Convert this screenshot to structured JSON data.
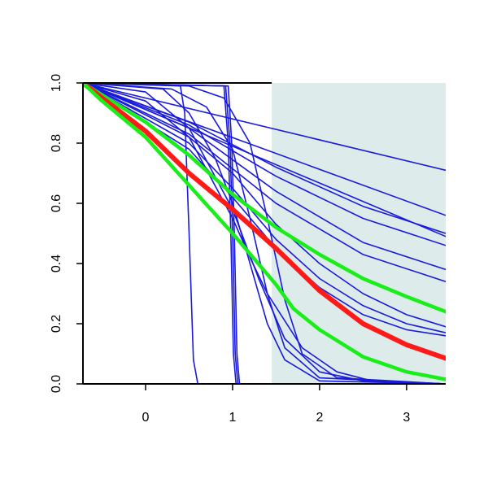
{
  "chart_data": {
    "type": "line",
    "title": "",
    "xlabel": "",
    "ylabel": "",
    "xlim": [
      -0.72,
      3.45
    ],
    "ylim": [
      0.0,
      1.0
    ],
    "x_ticks": [
      0,
      1,
      2,
      3
    ],
    "x_tick_labels": [
      "0",
      "1",
      "2",
      "3"
    ],
    "y_ticks": [
      0.0,
      0.2,
      0.4,
      0.6,
      0.8,
      1.0
    ],
    "y_tick_labels": [
      "0.0",
      "0.2",
      "0.4",
      "0.6",
      "0.8",
      "1.0"
    ],
    "grid": false,
    "legend": "none",
    "shaded_region": {
      "x": [
        1.45,
        3.45
      ],
      "y": [
        0.0,
        1.0
      ],
      "color": "#deebeb"
    },
    "colors": {
      "blue": "#1a1adb",
      "red": "#ff1a1a",
      "green": "#1aee1a"
    },
    "series": [
      {
        "role": "blue",
        "values": [
          [
            -0.72,
            1.0
          ],
          [
            0.4,
            0.99
          ],
          [
            0.45,
            0.9
          ],
          [
            0.5,
            0.5
          ],
          [
            0.55,
            0.08
          ],
          [
            0.6,
            0.0
          ],
          [
            3.45,
            0.0
          ]
        ]
      },
      {
        "role": "blue",
        "values": [
          [
            -0.72,
            1.0
          ],
          [
            0.9,
            0.99
          ],
          [
            0.95,
            0.8
          ],
          [
            0.98,
            0.5
          ],
          [
            1.01,
            0.1
          ],
          [
            1.04,
            0.0
          ],
          [
            3.45,
            0.0
          ]
        ]
      },
      {
        "role": "blue",
        "values": [
          [
            -0.72,
            1.0
          ],
          [
            0.92,
            0.99
          ],
          [
            0.97,
            0.8
          ],
          [
            1.0,
            0.5
          ],
          [
            1.03,
            0.1
          ],
          [
            1.06,
            0.0
          ],
          [
            3.45,
            0.0
          ]
        ]
      },
      {
        "role": "blue",
        "values": [
          [
            -0.72,
            1.0
          ],
          [
            0.95,
            0.99
          ],
          [
            0.99,
            0.8
          ],
          [
            1.02,
            0.5
          ],
          [
            1.05,
            0.1
          ],
          [
            1.08,
            0.0
          ],
          [
            3.45,
            0.0
          ]
        ]
      },
      {
        "role": "blue",
        "values": [
          [
            -0.72,
            1.0
          ],
          [
            0.2,
            0.98
          ],
          [
            0.5,
            0.9
          ],
          [
            0.8,
            0.75
          ],
          [
            1.0,
            0.6
          ],
          [
            1.2,
            0.4
          ],
          [
            1.4,
            0.2
          ],
          [
            1.6,
            0.08
          ],
          [
            2.0,
            0.01
          ],
          [
            3.45,
            0.0
          ]
        ]
      },
      {
        "role": "blue",
        "values": [
          [
            -0.72,
            1.0
          ],
          [
            0.3,
            0.98
          ],
          [
            0.7,
            0.92
          ],
          [
            1.0,
            0.78
          ],
          [
            1.2,
            0.55
          ],
          [
            1.4,
            0.3
          ],
          [
            1.6,
            0.12
          ],
          [
            2.0,
            0.02
          ],
          [
            3.45,
            0.0
          ]
        ]
      },
      {
        "role": "blue",
        "values": [
          [
            -0.72,
            1.0
          ],
          [
            0.5,
            0.99
          ],
          [
            0.9,
            0.95
          ],
          [
            1.2,
            0.8
          ],
          [
            1.4,
            0.55
          ],
          [
            1.6,
            0.28
          ],
          [
            1.8,
            0.1
          ],
          [
            2.2,
            0.02
          ],
          [
            3.45,
            0.0
          ]
        ]
      },
      {
        "role": "blue",
        "values": [
          [
            -0.72,
            1.0
          ],
          [
            0.0,
            0.97
          ],
          [
            0.5,
            0.85
          ],
          [
            1.0,
            0.58
          ],
          [
            1.3,
            0.35
          ],
          [
            1.6,
            0.15
          ],
          [
            2.0,
            0.04
          ],
          [
            2.5,
            0.01
          ],
          [
            3.45,
            0.0
          ]
        ]
      },
      {
        "role": "blue",
        "values": [
          [
            -0.72,
            1.0
          ],
          [
            0.0,
            0.94
          ],
          [
            0.5,
            0.82
          ],
          [
            1.0,
            0.55
          ],
          [
            1.2,
            0.42
          ],
          [
            1.4,
            0.3
          ],
          [
            1.8,
            0.12
          ],
          [
            2.2,
            0.04
          ],
          [
            2.6,
            0.01
          ],
          [
            3.45,
            0.0
          ]
        ]
      },
      {
        "role": "blue",
        "values": [
          [
            -0.72,
            1.0
          ],
          [
            3.45,
            0.71
          ]
        ]
      },
      {
        "role": "blue",
        "values": [
          [
            -0.72,
            1.0
          ],
          [
            3.45,
            0.56
          ]
        ]
      },
      {
        "role": "blue",
        "values": [
          [
            -0.72,
            1.0
          ],
          [
            3.45,
            0.49
          ]
        ]
      },
      {
        "role": "blue",
        "values": [
          [
            -0.72,
            1.0
          ],
          [
            0.5,
            0.87
          ],
          [
            1.5,
            0.72
          ],
          [
            2.5,
            0.59
          ],
          [
            3.45,
            0.5
          ]
        ]
      },
      {
        "role": "blue",
        "values": [
          [
            -0.72,
            1.0
          ],
          [
            0.5,
            0.86
          ],
          [
            1.5,
            0.69
          ],
          [
            2.5,
            0.55
          ],
          [
            3.45,
            0.46
          ]
        ]
      },
      {
        "role": "blue",
        "values": [
          [
            -0.72,
            1.0
          ],
          [
            0.5,
            0.85
          ],
          [
            1.5,
            0.64
          ],
          [
            2.5,
            0.47
          ],
          [
            3.45,
            0.38
          ]
        ]
      },
      {
        "role": "blue",
        "values": [
          [
            -0.72,
            1.0
          ],
          [
            0.5,
            0.83
          ],
          [
            1.5,
            0.6
          ],
          [
            2.5,
            0.43
          ],
          [
            3.45,
            0.34
          ]
        ]
      },
      {
        "role": "blue",
        "values": [
          [
            -0.72,
            1.0
          ],
          [
            0.5,
            0.82
          ],
          [
            1.0,
            0.7
          ],
          [
            1.5,
            0.53
          ],
          [
            2.0,
            0.4
          ],
          [
            2.5,
            0.3
          ],
          [
            3.0,
            0.23
          ],
          [
            3.45,
            0.19
          ]
        ]
      },
      {
        "role": "blue",
        "values": [
          [
            -0.72,
            1.0
          ],
          [
            0.5,
            0.8
          ],
          [
            1.0,
            0.65
          ],
          [
            1.5,
            0.48
          ],
          [
            2.0,
            0.35
          ],
          [
            2.5,
            0.26
          ],
          [
            3.0,
            0.2
          ],
          [
            3.45,
            0.17
          ]
        ]
      },
      {
        "role": "blue",
        "values": [
          [
            -0.72,
            1.0
          ],
          [
            0.5,
            0.78
          ],
          [
            1.0,
            0.62
          ],
          [
            1.5,
            0.45
          ],
          [
            2.0,
            0.32
          ],
          [
            2.5,
            0.23
          ],
          [
            3.0,
            0.18
          ],
          [
            3.45,
            0.16
          ]
        ]
      },
      {
        "role": "green",
        "values": [
          [
            -0.72,
            1.0
          ],
          [
            -0.5,
            0.96
          ],
          [
            0.0,
            0.87
          ],
          [
            0.5,
            0.76
          ],
          [
            1.0,
            0.63
          ],
          [
            1.5,
            0.52
          ],
          [
            2.0,
            0.43
          ],
          [
            2.5,
            0.35
          ],
          [
            3.0,
            0.29
          ],
          [
            3.45,
            0.24
          ]
        ]
      },
      {
        "role": "red",
        "values": [
          [
            -0.72,
            1.0
          ],
          [
            -0.5,
            0.95
          ],
          [
            0.0,
            0.84
          ],
          [
            0.5,
            0.7
          ],
          [
            1.0,
            0.58
          ],
          [
            1.5,
            0.45
          ],
          [
            2.0,
            0.31
          ],
          [
            2.5,
            0.2
          ],
          [
            3.0,
            0.13
          ],
          [
            3.45,
            0.085
          ]
        ]
      },
      {
        "role": "green",
        "values": [
          [
            -0.72,
            1.0
          ],
          [
            -0.5,
            0.94
          ],
          [
            0.0,
            0.82
          ],
          [
            0.5,
            0.66
          ],
          [
            1.0,
            0.5
          ],
          [
            1.5,
            0.33
          ],
          [
            1.7,
            0.25
          ],
          [
            2.0,
            0.18
          ],
          [
            2.5,
            0.09
          ],
          [
            3.0,
            0.04
          ],
          [
            3.45,
            0.015
          ]
        ]
      }
    ]
  }
}
